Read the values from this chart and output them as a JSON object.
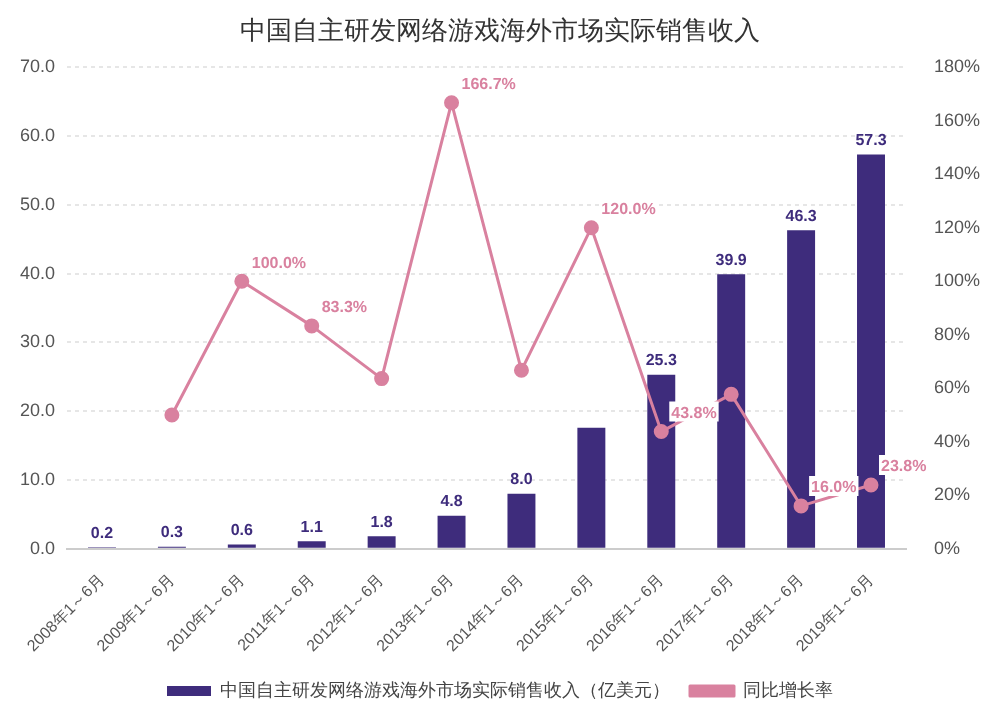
{
  "chart_data": {
    "type": "bar",
    "title": "中国自主研发网络游戏海外市场实际销售收入",
    "categories": [
      "2008年1～6月",
      "2009年1～6月",
      "2010年1～6月",
      "2011年1～6月",
      "2012年1～6月",
      "2013年1～6月",
      "2014年1～6月",
      "2015年1～6月",
      "2016年1～6月",
      "2017年1～6月",
      "2018年1～6月",
      "2019年1～6月"
    ],
    "series": [
      {
        "name": "中国自主研发网络游戏海外市场实际销售收入（亿美元）",
        "color": "#3e2c7c",
        "values": [
          0.2,
          0.3,
          0.6,
          1.1,
          1.8,
          4.8,
          8.0,
          17.6,
          25.3,
          39.9,
          46.3,
          57.3
        ],
        "value_labels": [
          "0.2",
          "0.3",
          "0.6",
          "1.1",
          "1.8",
          "4.8",
          "8.0",
          null,
          "25.3",
          "39.9",
          "46.3",
          "57.3"
        ]
      },
      {
        "name": "同比增长率",
        "type": "line",
        "axis": "y2",
        "color": "#d9819f",
        "marker": "circle",
        "values": [
          null,
          50,
          100,
          83.3,
          63.6,
          166.7,
          66.7,
          120,
          43.8,
          57.7,
          16,
          23.8
        ],
        "value_labels": [
          null,
          null,
          "100.0%",
          "83.3%",
          null,
          "166.7%",
          null,
          "120.0%",
          "43.8%",
          null,
          "16.0%",
          "23.8%"
        ]
      }
    ],
    "ylim": [
      0,
      70
    ],
    "yticks": [
      {
        "value": 0,
        "label": "0.0"
      },
      {
        "value": 10,
        "label": "10.0"
      },
      {
        "value": 20,
        "label": "20.0"
      },
      {
        "value": 30,
        "label": "30.0"
      },
      {
        "value": 40,
        "label": "40.0"
      },
      {
        "value": 50,
        "label": "50.0"
      },
      {
        "value": 60,
        "label": "60.0"
      },
      {
        "value": 70,
        "label": "70.0"
      }
    ],
    "y2lim": [
      0,
      180
    ],
    "y2ticks": [
      {
        "value": 0,
        "label": "0%"
      },
      {
        "value": 20,
        "label": "20%"
      },
      {
        "value": 40,
        "label": "40%"
      },
      {
        "value": 60,
        "label": "60%"
      },
      {
        "value": 80,
        "label": "80%"
      },
      {
        "value": 100,
        "label": "100%"
      },
      {
        "value": 120,
        "label": "120%"
      },
      {
        "value": 140,
        "label": "140%"
      },
      {
        "value": 160,
        "label": "160%"
      },
      {
        "value": 180,
        "label": "180%"
      }
    ],
    "grid": "y",
    "legend": "bottom"
  }
}
